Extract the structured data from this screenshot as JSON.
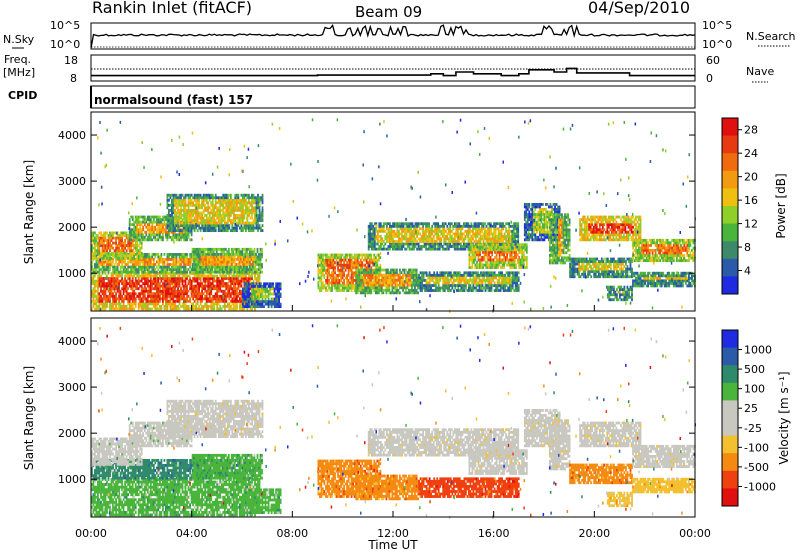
{
  "header": {
    "station": "Rankin Inlet (fitACF)",
    "beam": "Beam 09",
    "date": "04/Sep/2010"
  },
  "sidebar_labels": {
    "nsky": "N.Sky",
    "freq_line1": "Freq.",
    "freq_line2": "[MHz]",
    "cpid": "CPID",
    "nsearch": "N.Search",
    "nave": "Nave"
  },
  "cpid_text": "normalsound (fast) 157",
  "colors": {
    "power_scale": [
      "#1f2be0",
      "#2a5aa8",
      "#3c8a6a",
      "#49b53a",
      "#8fcf2a",
      "#f0c010",
      "#f29a10",
      "#f06a10",
      "#e83a10",
      "#e01010"
    ],
    "velocity_scale": [
      "#e01010",
      "#f04010",
      "#f58a10",
      "#f3c030",
      "#c8c8c0",
      "#c8c8c0",
      "#49b53a",
      "#2e8a6a",
      "#2a5aa8",
      "#1f2be0"
    ]
  },
  "chart_data": [
    {
      "type": "line",
      "name_panel": "noise",
      "ylabel_left": "N.Sky",
      "ylabel_right": "N.Search",
      "y_ticks": [
        "10^5",
        "10^0"
      ],
      "y_ticks_right": [
        "10^5",
        "10^0"
      ],
      "xlim": [
        0,
        24
      ]
    },
    {
      "type": "line",
      "name_panel": "frequency",
      "ylabel_left": "Freq. [MHz]",
      "ylabel_right": "Nave",
      "y_ticks": [
        "18",
        "8"
      ],
      "y_ticks_right": [
        "60",
        "0"
      ],
      "freq_steps": [
        {
          "t": 0,
          "f": 11
        },
        {
          "t": 9.0,
          "f": 11.3
        },
        {
          "t": 13.5,
          "f": 12
        },
        {
          "t": 14.0,
          "f": 11
        },
        {
          "t": 14.5,
          "f": 13
        },
        {
          "t": 15.2,
          "f": 12
        },
        {
          "t": 16.3,
          "f": 11
        },
        {
          "t": 17.0,
          "f": 12
        },
        {
          "t": 17.4,
          "f": 14.2
        },
        {
          "t": 18.4,
          "f": 13
        },
        {
          "t": 18.9,
          "f": 15
        },
        {
          "t": 19.3,
          "f": 12.5
        },
        {
          "t": 21.4,
          "f": 11
        },
        {
          "t": 24,
          "f": 11
        }
      ]
    },
    {
      "type": "heatmap",
      "name_panel": "power",
      "ylabel": "Slant Range [km]",
      "y_ticks": [
        1000,
        2000,
        3000,
        4000
      ],
      "ylim": [
        180,
        4500
      ],
      "xlim": [
        0,
        24
      ],
      "colorbar_label": "Power [dB]",
      "colorbar_ticks": [
        4,
        8,
        12,
        16,
        20,
        24,
        28
      ],
      "colorbar_range": [
        0,
        30
      ]
    },
    {
      "type": "heatmap",
      "name_panel": "velocity",
      "ylabel": "Slant Range [km]",
      "y_ticks": [
        1000,
        2000,
        3000,
        4000
      ],
      "ylim": [
        180,
        4500
      ],
      "xlim": [
        0,
        24
      ],
      "xlabel": "Time UT",
      "x_ticks": [
        "00:00",
        "04:00",
        "08:00",
        "12:00",
        "16:00",
        "20:00",
        "00:00"
      ],
      "colorbar_label": "Velocity [m s⁻¹]",
      "colorbar_ticks": [
        "1000",
        "500",
        "100",
        "25",
        "-25",
        "-100",
        "-500",
        "-1000"
      ]
    }
  ]
}
